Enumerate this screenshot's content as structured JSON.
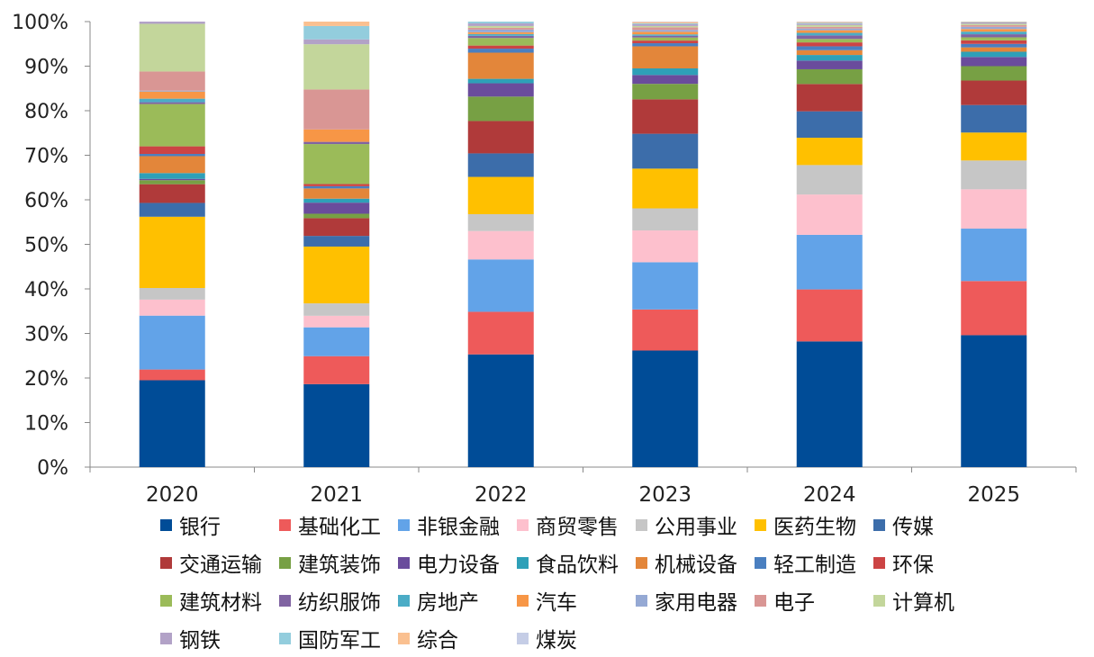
{
  "chart_data": {
    "type": "bar",
    "stacked": true,
    "percent": true,
    "categories": [
      "2020",
      "2021",
      "2022",
      "2023",
      "2024",
      "2025"
    ],
    "y_ticks": [
      "0%",
      "10%",
      "20%",
      "30%",
      "40%",
      "50%",
      "60%",
      "70%",
      "80%",
      "90%",
      "100%"
    ],
    "ylim": [
      0,
      100
    ],
    "grid": false,
    "legend_position": "bottom",
    "series": [
      {
        "name": "银行",
        "color": "#004C97",
        "values": [
          19.5,
          18.7,
          25.4,
          26.4,
          29.0,
          30.2
        ]
      },
      {
        "name": "基础化工",
        "color": "#EE5A5A",
        "values": [
          2.4,
          6.3,
          9.6,
          9.3,
          12.0,
          12.4
        ]
      },
      {
        "name": "非银金融",
        "color": "#62A3E8",
        "values": [
          12.1,
          6.5,
          11.8,
          10.7,
          12.6,
          12.0
        ]
      },
      {
        "name": "商贸零售",
        "color": "#FDC0CD",
        "values": [
          3.6,
          2.6,
          6.4,
          7.2,
          9.3,
          9.0
        ]
      },
      {
        "name": "公用事业",
        "color": "#C6C6C6",
        "values": [
          2.6,
          2.8,
          3.8,
          5.0,
          6.8,
          6.6
        ]
      },
      {
        "name": "医药生物",
        "color": "#FFC000",
        "values": [
          16.0,
          12.8,
          8.4,
          9.0,
          6.3,
          6.4
        ]
      },
      {
        "name": "传媒",
        "color": "#3C6DAA",
        "values": [
          3.1,
          2.4,
          5.3,
          7.9,
          6.1,
          6.3
        ]
      },
      {
        "name": "交通运输",
        "color": "#B03A3A",
        "values": [
          4.2,
          4.0,
          7.3,
          7.8,
          6.3,
          5.6
        ]
      },
      {
        "name": "建筑装饰",
        "color": "#77A044",
        "values": [
          0.9,
          1.0,
          5.5,
          3.5,
          3.4,
          3.3
        ]
      },
      {
        "name": "电力设备",
        "color": "#6A4C9C",
        "values": [
          0.3,
          2.5,
          3.0,
          2.0,
          2.0,
          2.1
        ]
      },
      {
        "name": "食品饮料",
        "color": "#2EA0B8",
        "values": [
          1.3,
          0.9,
          1.0,
          1.5,
          1.3,
          1.2
        ]
      },
      {
        "name": "机械设备",
        "color": "#E3863A",
        "values": [
          3.8,
          2.3,
          5.9,
          5.0,
          1.1,
          1.0
        ]
      },
      {
        "name": "轻工制造",
        "color": "#4A7FC0",
        "values": [
          0.5,
          0.5,
          0.9,
          0.7,
          0.9,
          0.8
        ]
      },
      {
        "name": "环保",
        "color": "#CC4444",
        "values": [
          1.7,
          0.5,
          0.7,
          0.6,
          0.9,
          0.8
        ]
      },
      {
        "name": "建筑材料",
        "color": "#9BBB59",
        "values": [
          9.5,
          9.0,
          1.7,
          0.7,
          0.8,
          0.7
        ]
      },
      {
        "name": "纺织服饰",
        "color": "#8064A2",
        "values": [
          0.4,
          0.5,
          0.5,
          0.4,
          0.8,
          0.7
        ]
      },
      {
        "name": "房地产",
        "color": "#4BACC6",
        "values": [
          0.8,
          0.0,
          0.4,
          0.3,
          0.6,
          0.6
        ]
      },
      {
        "name": "汽车",
        "color": "#F79646",
        "values": [
          1.6,
          2.8,
          0.4,
          0.6,
          0.6,
          0.6
        ]
      },
      {
        "name": "家用电器",
        "color": "#95A9D4",
        "values": [
          0.2,
          0.0,
          0.6,
          0.4,
          0.4,
          0.5
        ]
      },
      {
        "name": "电子",
        "color": "#D99694",
        "values": [
          4.3,
          9.0,
          0.4,
          0.6,
          0.4,
          0.4
        ]
      },
      {
        "name": "计算机",
        "color": "#C3D69B",
        "values": [
          10.7,
          10.2,
          0.4,
          0.3,
          0.4,
          0.3
        ]
      },
      {
        "name": "钢铁",
        "color": "#B2A2C7",
        "values": [
          0.5,
          1.1,
          0.6,
          0.4,
          0.3,
          0.3
        ]
      },
      {
        "name": "国防军工",
        "color": "#93CDDD",
        "values": [
          0.0,
          3.0,
          0.4,
          0.2,
          0.2,
          0.1
        ]
      },
      {
        "name": "综合",
        "color": "#FAC090",
        "values": [
          0.0,
          1.0,
          0.0,
          0.3,
          0.2,
          0.1
        ]
      },
      {
        "name": "煤炭",
        "color": "#C5CDE6",
        "values": [
          0.0,
          0.0,
          0.0,
          0.1,
          0.1,
          0.0
        ]
      }
    ],
    "legend_rows": [
      [
        "银行",
        "基础化工",
        "非银金融",
        "商贸零售",
        "公用事业",
        "医药生物",
        "传媒"
      ],
      [
        "交通运输",
        "建筑装饰",
        "电力设备",
        "食品饮料",
        "机械设备",
        "轻工制造",
        "环保"
      ],
      [
        "建筑材料",
        "纺织服饰",
        "房地产",
        "汽车",
        "家用电器",
        "电子",
        "计算机"
      ],
      [
        "钢铁",
        "国防军工",
        "综合",
        "煤炭"
      ]
    ]
  }
}
